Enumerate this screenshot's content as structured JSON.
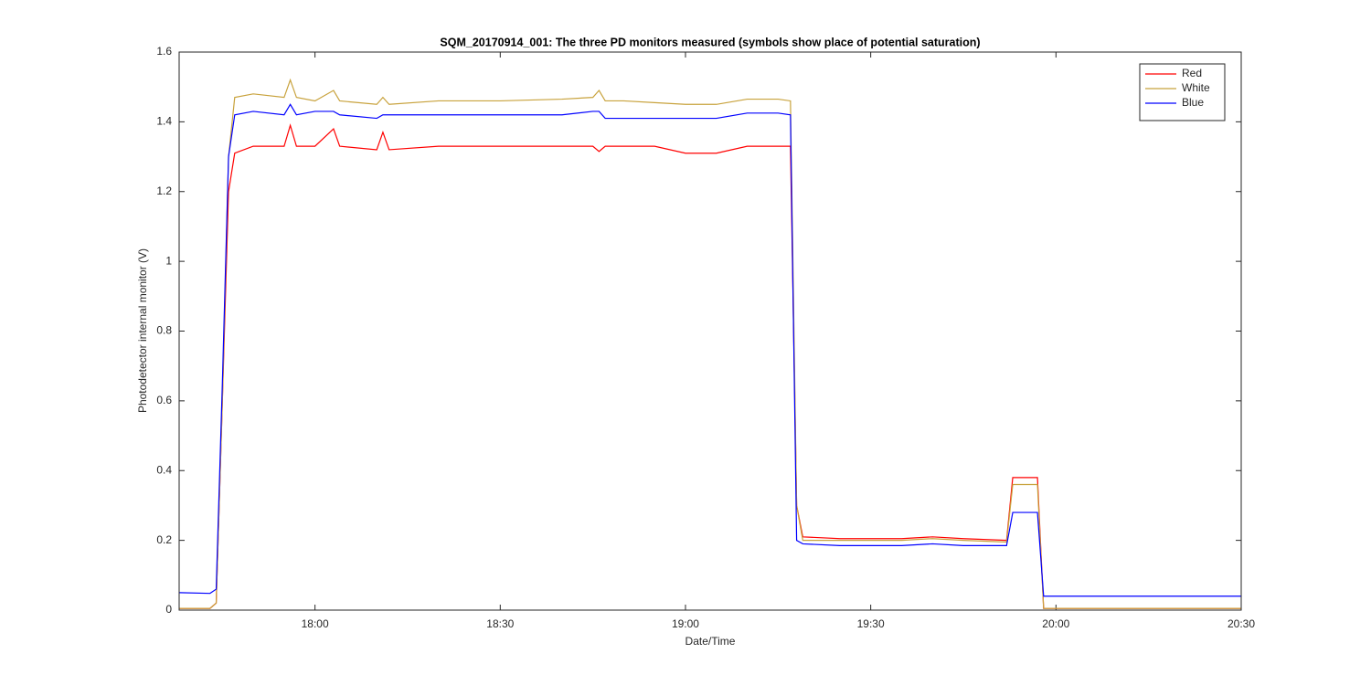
{
  "chart_data": {
    "type": "line",
    "title": "SQM_20170914_001: The three PD monitors measured (symbols show place of potential saturation)",
    "x_label": "Date/Time",
    "y_label": "Photodetector internal monitor (V)",
    "x": [
      "17:38",
      "17:43",
      "17:44",
      "17:45",
      "17:46",
      "17:47",
      "17:50",
      "17:55",
      "17:56",
      "17:57",
      "18:00",
      "18:03",
      "18:04",
      "18:10",
      "18:11",
      "18:12",
      "18:20",
      "18:30",
      "18:40",
      "18:45",
      "18:46",
      "18:47",
      "18:50",
      "18:55",
      "19:00",
      "19:05",
      "19:10",
      "19:15",
      "19:17",
      "19:18",
      "19:19",
      "19:25",
      "19:35",
      "19:40",
      "19:45",
      "19:52",
      "19:53",
      "19:57",
      "19:58",
      "20:05",
      "20:20",
      "20:30"
    ],
    "series": [
      {
        "name": "Red",
        "color": "#ff0000",
        "values": [
          0.005,
          0.005,
          0.02,
          0.6,
          1.2,
          1.31,
          1.33,
          1.33,
          1.39,
          1.33,
          1.33,
          1.38,
          1.33,
          1.32,
          1.37,
          1.32,
          1.33,
          1.33,
          1.33,
          1.33,
          1.315,
          1.33,
          1.33,
          1.33,
          1.31,
          1.31,
          1.33,
          1.33,
          1.33,
          0.3,
          0.21,
          0.205,
          0.205,
          0.21,
          0.205,
          0.2,
          0.38,
          0.38,
          0.005,
          0.005,
          0.005,
          0.005
        ]
      },
      {
        "name": "White",
        "color": "#c8a23c",
        "values": [
          0.005,
          0.005,
          0.02,
          0.6,
          1.3,
          1.47,
          1.48,
          1.47,
          1.52,
          1.47,
          1.46,
          1.49,
          1.46,
          1.45,
          1.47,
          1.45,
          1.46,
          1.46,
          1.465,
          1.47,
          1.49,
          1.46,
          1.46,
          1.455,
          1.45,
          1.45,
          1.465,
          1.465,
          1.46,
          0.3,
          0.2,
          0.2,
          0.2,
          0.205,
          0.2,
          0.195,
          0.36,
          0.36,
          0.005,
          0.005,
          0.005,
          0.005
        ]
      },
      {
        "name": "Blue",
        "color": "#0000ff",
        "values": [
          0.05,
          0.048,
          0.06,
          0.65,
          1.3,
          1.42,
          1.43,
          1.42,
          1.45,
          1.42,
          1.43,
          1.43,
          1.42,
          1.41,
          1.42,
          1.42,
          1.42,
          1.42,
          1.42,
          1.43,
          1.43,
          1.41,
          1.41,
          1.41,
          1.41,
          1.41,
          1.425,
          1.425,
          1.42,
          0.2,
          0.19,
          0.185,
          0.185,
          0.19,
          0.185,
          0.185,
          0.28,
          0.28,
          0.04,
          0.04,
          0.04,
          0.04
        ]
      }
    ],
    "xlim": [
      "17:38",
      "20:30"
    ],
    "xticks": [
      "18:00",
      "18:30",
      "19:00",
      "19:30",
      "20:00",
      "20:30"
    ],
    "ylim": [
      0,
      1.6
    ],
    "yticks": [
      0,
      0.2,
      0.4,
      0.6,
      0.8,
      1,
      1.2,
      1.4,
      1.6
    ],
    "legend": "northeast",
    "grid": false
  }
}
